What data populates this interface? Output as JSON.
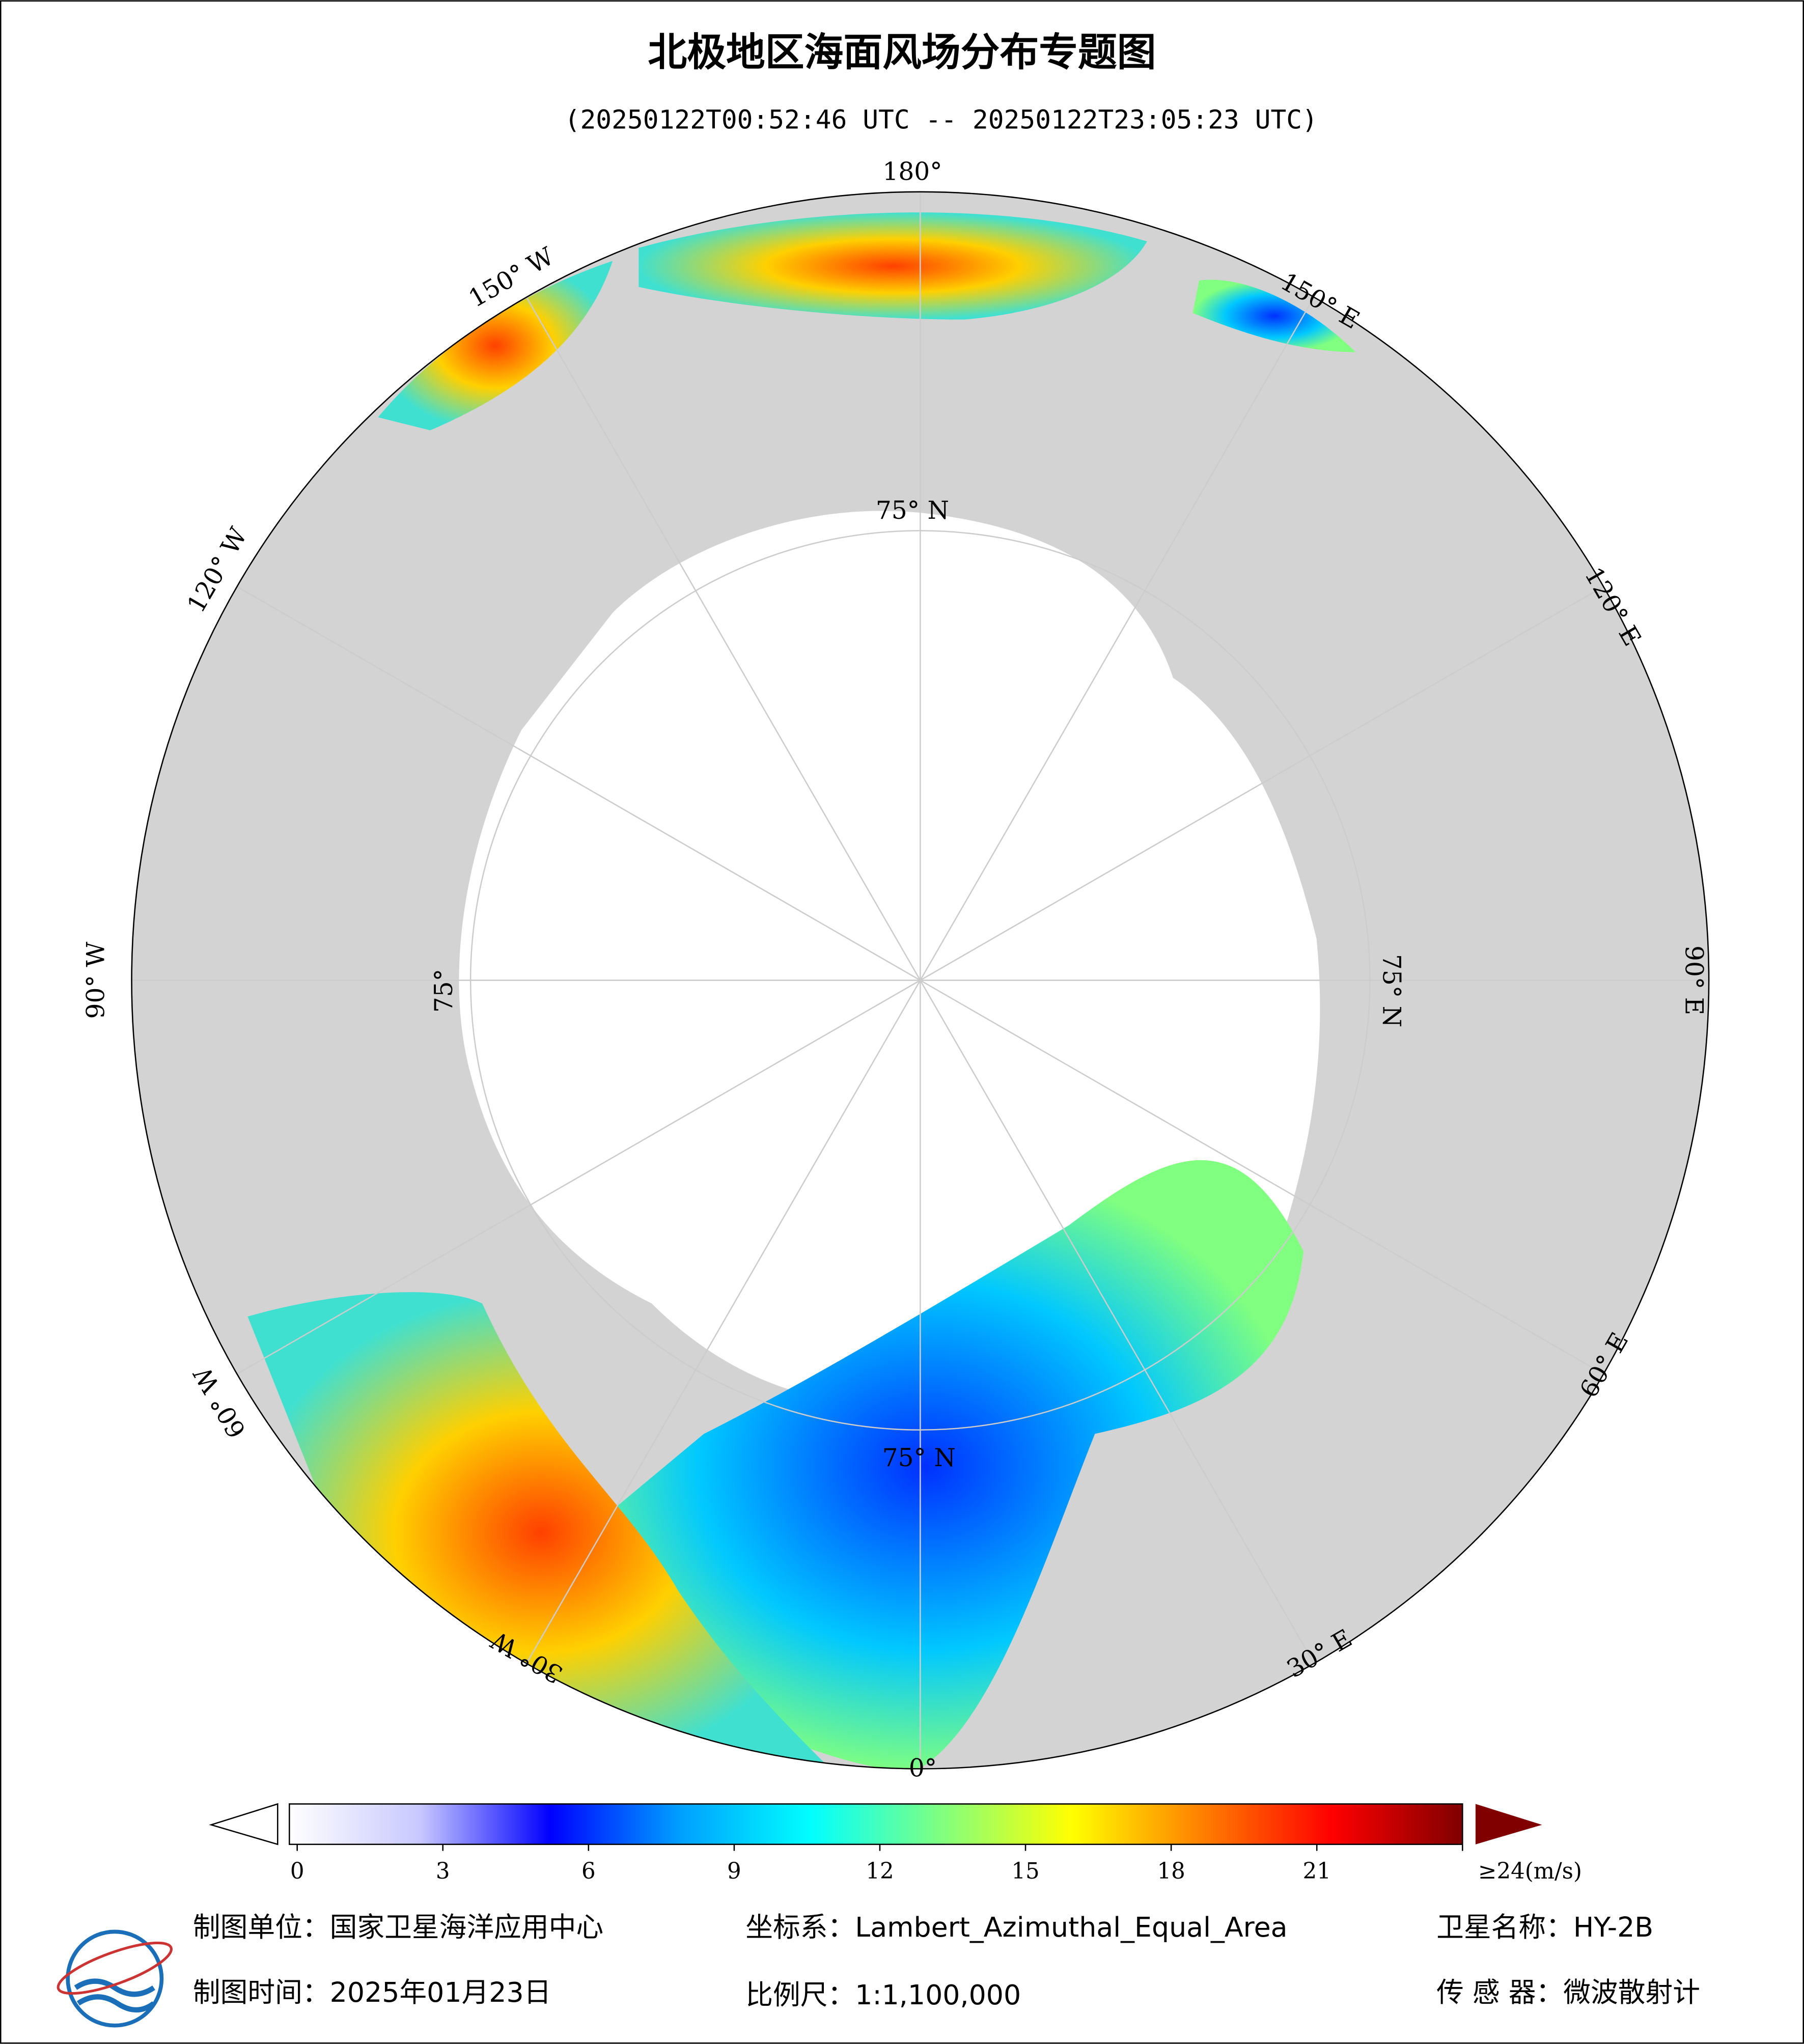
{
  "header": {
    "title": "北极地区海面风场分布专题图",
    "subtitle": "(20250122T00:52:46 UTC -- 20250122T23:05:23 UTC)"
  },
  "map": {
    "longitude_labels": [
      "180°",
      "150° E",
      "120° E",
      "90° E",
      "60° E",
      "30° E",
      "0°",
      "30° W",
      "60° W",
      "90° W",
      "120° W",
      "150° W"
    ],
    "latitude_labels": [
      "75° N",
      "75° N",
      "75° N",
      "75°"
    ]
  },
  "colorbar": {
    "lim": [
      0,
      24
    ],
    "ticks": [
      0,
      3,
      6,
      9,
      12,
      15,
      18,
      21,
      {
        "value": 24,
        "label": "≥24(m/s)"
      }
    ],
    "colors": [
      "#ffffff",
      "#c8c8ff",
      "#0000ff",
      "#00a0ff",
      "#00ffff",
      "#80ff80",
      "#ffff00",
      "#ff8000",
      "#ff0000",
      "#800000"
    ]
  },
  "footer": {
    "unit": "制图单位：国家卫星海洋应用中心",
    "projection": "坐标系：Lambert_Azimuthal_Equal_Area",
    "satellite": "卫星名称：HY-2B",
    "date": "制图时间：2025年01月23日",
    "scale": "比例尺：1:1,100,000",
    "sensor": "传 感 器：微波散射计"
  }
}
